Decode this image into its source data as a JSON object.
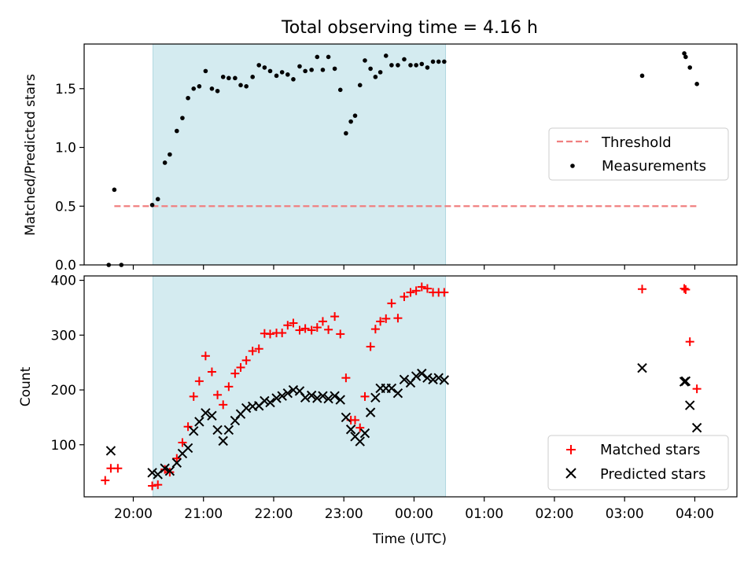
{
  "figure": {
    "title": "Total observing time = 4.16 h"
  },
  "chart_data": [
    {
      "type": "scatter",
      "ylabel": "Matched/Predicted stars",
      "xlabel": "",
      "ylim": [
        0,
        1.88
      ],
      "xlim": [
        19.3,
        28.6
      ],
      "x_unit": "hours UTC (values after 24 are past midnight)",
      "yticks": [
        0.0,
        0.5,
        1.0,
        1.5
      ],
      "ytick_labels": [
        "0.0",
        "0.5",
        "1.0",
        "1.5"
      ],
      "grid": false,
      "legend": "center-right",
      "shaded_interval": {
        "x0": 20.28,
        "x1": 24.45,
        "color": "#d4ebf0"
      },
      "series": [
        {
          "name": "Threshold",
          "kind": "dashed-line",
          "color": "#f08080",
          "x": [
            19.73,
            28.05
          ],
          "y": [
            0.5,
            0.5
          ]
        },
        {
          "name": "Measurements",
          "kind": "points",
          "color": "#000000",
          "x": [
            19.65,
            19.73,
            19.83,
            20.27,
            20.35,
            20.45,
            20.52,
            20.62,
            20.7,
            20.78,
            20.86,
            20.94,
            21.03,
            21.12,
            21.2,
            21.28,
            21.36,
            21.45,
            21.53,
            21.61,
            21.7,
            21.79,
            21.87,
            21.95,
            22.04,
            22.12,
            22.2,
            22.28,
            22.37,
            22.45,
            22.54,
            22.62,
            22.7,
            22.78,
            22.87,
            22.95,
            23.03,
            23.1,
            23.16,
            23.23,
            23.3,
            23.38,
            23.45,
            23.52,
            23.6,
            23.68,
            23.77,
            23.86,
            23.95,
            24.03,
            24.11,
            24.19,
            24.27,
            24.35,
            24.43,
            27.25,
            27.85,
            27.87,
            27.93,
            28.03
          ],
          "y": [
            0.0,
            0.64,
            0.0,
            0.51,
            0.56,
            0.87,
            0.94,
            1.14,
            1.25,
            1.42,
            1.5,
            1.52,
            1.65,
            1.5,
            1.48,
            1.6,
            1.59,
            1.59,
            1.53,
            1.52,
            1.6,
            1.7,
            1.68,
            1.65,
            1.61,
            1.64,
            1.62,
            1.58,
            1.69,
            1.65,
            1.66,
            1.77,
            1.66,
            1.77,
            1.67,
            1.49,
            1.12,
            1.22,
            1.27,
            1.53,
            1.74,
            1.67,
            1.6,
            1.64,
            1.78,
            1.7,
            1.7,
            1.75,
            1.7,
            1.7,
            1.71,
            1.68,
            1.73,
            1.73,
            1.73,
            1.61,
            1.8,
            1.77,
            1.68,
            1.54
          ]
        }
      ]
    },
    {
      "type": "scatter",
      "ylabel": "Count",
      "xlabel": "Time (UTC)",
      "ylim": [
        5,
        408
      ],
      "xlim": [
        19.3,
        28.6
      ],
      "yticks": [
        100,
        200,
        300,
        400
      ],
      "ytick_labels": [
        "100",
        "200",
        "300",
        "400"
      ],
      "xticks": [
        20,
        21,
        22,
        23,
        24,
        25,
        26,
        27,
        28
      ],
      "xtick_labels": [
        "20:00",
        "21:00",
        "22:00",
        "23:00",
        "00:00",
        "01:00",
        "02:00",
        "03:00",
        "04:00"
      ],
      "grid": false,
      "legend": "bottom-right",
      "shaded_interval": {
        "x0": 20.28,
        "x1": 24.45,
        "color": "#d4ebf0"
      },
      "series": [
        {
          "name": "Matched stars",
          "marker": "+",
          "color": "#ff0000",
          "x": [
            19.6,
            19.68,
            19.78,
            20.27,
            20.35,
            20.45,
            20.52,
            20.62,
            20.7,
            20.78,
            20.86,
            20.94,
            21.03,
            21.12,
            21.2,
            21.28,
            21.36,
            21.45,
            21.53,
            21.61,
            21.7,
            21.79,
            21.87,
            21.95,
            22.04,
            22.12,
            22.2,
            22.28,
            22.37,
            22.45,
            22.54,
            22.62,
            22.7,
            22.78,
            22.87,
            22.95,
            23.03,
            23.1,
            23.16,
            23.23,
            23.3,
            23.38,
            23.45,
            23.52,
            23.6,
            23.68,
            23.77,
            23.86,
            23.95,
            24.03,
            24.11,
            24.19,
            24.27,
            24.35,
            24.43,
            27.25,
            27.85,
            27.87,
            27.93,
            28.03
          ],
          "y": [
            35,
            57,
            57,
            25,
            27,
            55,
            50,
            75,
            104,
            133,
            188,
            216,
            262,
            233,
            191,
            173,
            206,
            230,
            241,
            254,
            271,
            275,
            303,
            302,
            304,
            304,
            318,
            322,
            309,
            312,
            309,
            314,
            325,
            310,
            334,
            302,
            222,
            145,
            145,
            131,
            188,
            279,
            311,
            325,
            330,
            358,
            331,
            370,
            378,
            381,
            388,
            385,
            378,
            378,
            378,
            384,
            385,
            383,
            288,
            202
          ]
        },
        {
          "name": "Predicted stars",
          "marker": "x",
          "color": "#000000",
          "x": [
            19.68,
            20.27,
            20.35,
            20.45,
            20.52,
            20.62,
            20.7,
            20.78,
            20.86,
            20.94,
            21.03,
            21.12,
            21.2,
            21.28,
            21.36,
            21.45,
            21.53,
            21.61,
            21.7,
            21.79,
            21.87,
            21.95,
            22.04,
            22.12,
            22.2,
            22.28,
            22.37,
            22.45,
            22.54,
            22.62,
            22.7,
            22.78,
            22.87,
            22.95,
            23.03,
            23.1,
            23.16,
            23.23,
            23.3,
            23.38,
            23.45,
            23.52,
            23.6,
            23.68,
            23.77,
            23.86,
            23.95,
            24.03,
            24.11,
            24.19,
            24.27,
            24.35,
            24.43,
            27.25,
            27.85,
            27.87,
            27.93,
            28.03
          ],
          "y": [
            89,
            49,
            46,
            57,
            52,
            67,
            84,
            94,
            125,
            142,
            158,
            153,
            127,
            107,
            127,
            144,
            156,
            167,
            170,
            171,
            180,
            177,
            185,
            189,
            194,
            200,
            198,
            186,
            190,
            185,
            189,
            184,
            189,
            182,
            150,
            128,
            115,
            106,
            121,
            159,
            186,
            203,
            203,
            203,
            194,
            219,
            213,
            225,
            230,
            222,
            219,
            222,
            218,
            240,
            215,
            216,
            172,
            131
          ]
        }
      ]
    }
  ]
}
